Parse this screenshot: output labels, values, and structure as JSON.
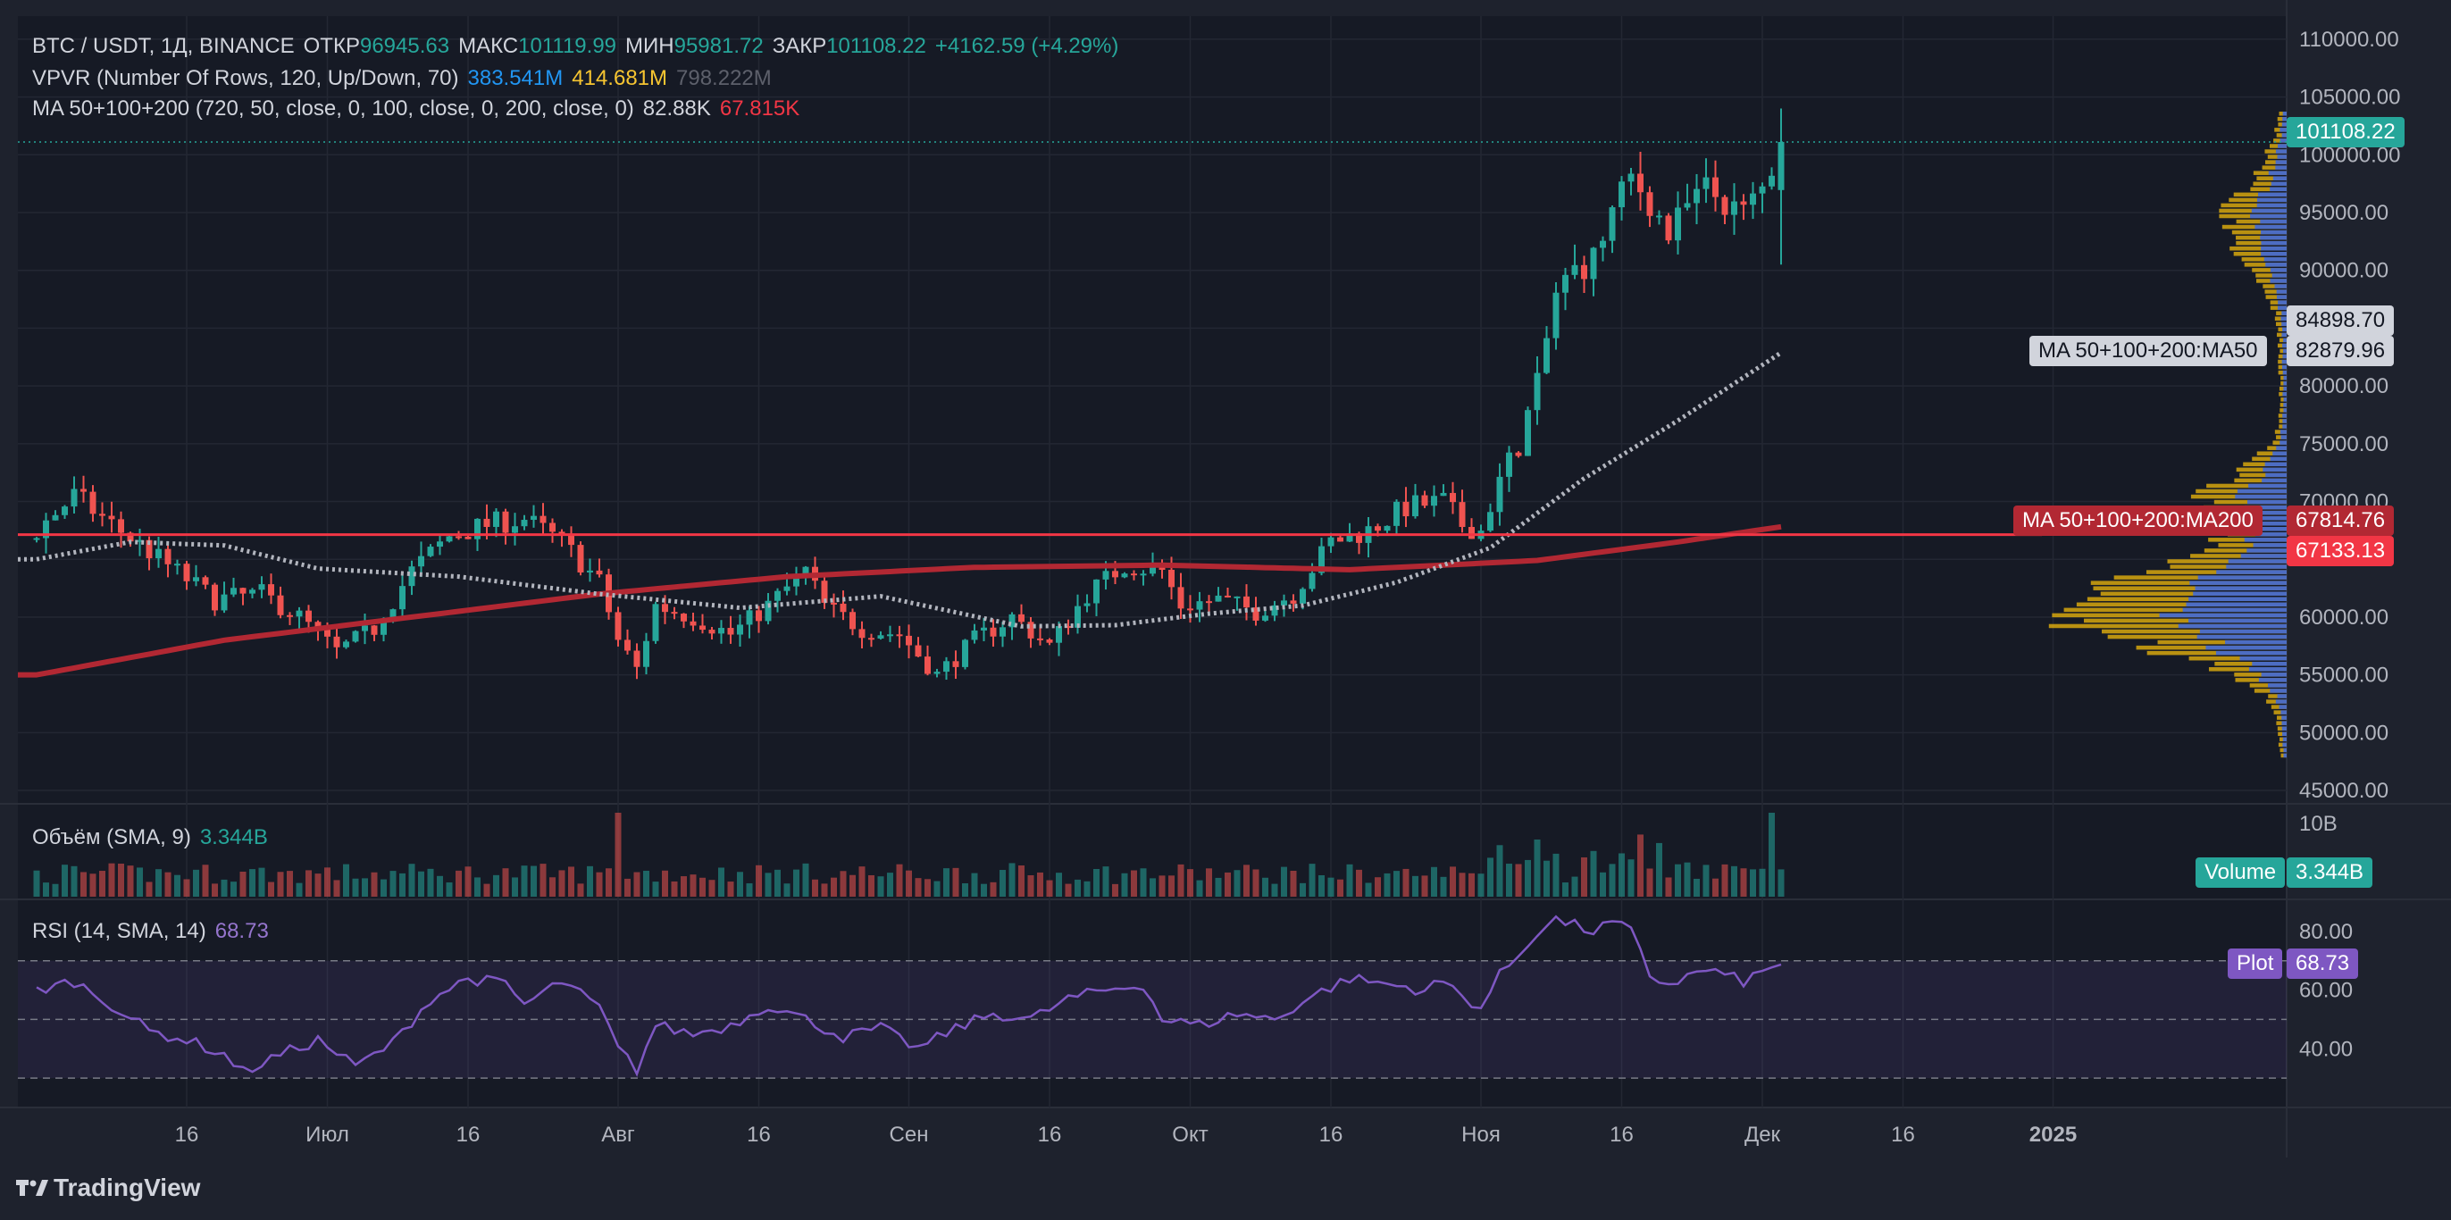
{
  "legend": {
    "symbol": "BTC / USDT, 1Д, BINANCE",
    "open_label": "ОТКР",
    "open": "96945.63",
    "high_label": "МАКС",
    "high": "101119.99",
    "low_label": "МИН",
    "low": "95981.72",
    "close_label": "ЗАКР",
    "close": "101108.22",
    "change": "+4162.59 (+4.29%)",
    "vpvr_label": "VPVR (Number Of Rows, 120, Up/Down, 70)",
    "vpvr_up": "383.541M",
    "vpvr_down": "414.681M",
    "vpvr_total": "798.222M",
    "ma_label": "MA 50+100+200 (720, 50, close, 0, 100, close, 0, 200, close, 0)",
    "ma_v1": "82.88K",
    "ma_v2": "67.815K",
    "volume_label": "Объём (SMA, 9)",
    "volume_value": "3.344B",
    "rsi_label": "RSI (14, SMA, 14)",
    "rsi_value": "68.73"
  },
  "price_labels": {
    "last": "101108.22",
    "ma50_name": "MA 50+100+200:MA50",
    "ma50_value": "82879.96",
    "crosshair": "84898.70",
    "ma200_name": "MA 50+100+200:MA200",
    "ma200_value": "67814.76",
    "hline_value": "67133.13",
    "volume_name": "Volume",
    "volume_value": "3.344B",
    "plot_name": "Plot",
    "plot_value": "68.73"
  },
  "brand": "TradingView",
  "colors": {
    "up": "#26a69a",
    "down": "#ef5350",
    "ma50": "#b2b5be",
    "ma200": "#b22833",
    "hline": "#f23645",
    "rsi": "#7e57c2",
    "vp_up": "#2962ff",
    "vp_down": "#f0b90b"
  },
  "chart_data": [
    {
      "type": "candlestick",
      "title": "BTC / USDT, 1Д, BINANCE",
      "ylim": [
        44000,
        112000
      ],
      "y_ticks": [
        45000,
        50000,
        55000,
        60000,
        65000,
        70000,
        75000,
        80000,
        85000,
        90000,
        95000,
        100000,
        105000,
        110000
      ],
      "y_tick_labels": [
        "45000.00",
        "50000.00",
        "55000.00",
        "60000.00",
        "65000.00",
        "70000.00",
        "75000.00",
        "80000.00",
        "85000.00",
        "90000.00",
        "95000.00",
        "100000.00",
        "105000.00",
        "110000.00"
      ],
      "x_ticks": [
        {
          "label": "16",
          "day": 16
        },
        {
          "label": "Июл",
          "day": 31
        },
        {
          "label": "16",
          "day": 46
        },
        {
          "label": "Авг",
          "day": 62
        },
        {
          "label": "16",
          "day": 77
        },
        {
          "label": "Сен",
          "day": 93
        },
        {
          "label": "16",
          "day": 108
        },
        {
          "label": "Окт",
          "day": 123
        },
        {
          "label": "16",
          "day": 138
        },
        {
          "label": "Ноя",
          "day": 154
        },
        {
          "label": "16",
          "day": 169
        },
        {
          "label": "Дек",
          "day": 184
        },
        {
          "label": "16",
          "day": 199
        },
        {
          "label": "2025",
          "day": 215
        }
      ],
      "close_anchors": [
        [
          0,
          67500
        ],
        [
          4,
          70500
        ],
        [
          8,
          68000
        ],
        [
          14,
          64500
        ],
        [
          19,
          61500
        ],
        [
          24,
          62000
        ],
        [
          28,
          60000
        ],
        [
          32,
          57000
        ],
        [
          36,
          59000
        ],
        [
          40,
          64000
        ],
        [
          44,
          67000
        ],
        [
          48,
          68000
        ],
        [
          52,
          68500
        ],
        [
          56,
          66500
        ],
        [
          60,
          63000
        ],
        [
          62,
          58000
        ],
        [
          64,
          55500
        ],
        [
          66,
          61000
        ],
        [
          70,
          60000
        ],
        [
          74,
          58500
        ],
        [
          78,
          61000
        ],
        [
          82,
          64000
        ],
        [
          84,
          61000
        ],
        [
          88,
          59000
        ],
        [
          92,
          58500
        ],
        [
          96,
          55000
        ],
        [
          100,
          58000
        ],
        [
          104,
          60000
        ],
        [
          108,
          57500
        ],
        [
          112,
          62000
        ],
        [
          116,
          64500
        ],
        [
          120,
          64000
        ],
        [
          122,
          61000
        ],
        [
          126,
          61500
        ],
        [
          130,
          60500
        ],
        [
          134,
          62000
        ],
        [
          138,
          66500
        ],
        [
          142,
          67500
        ],
        [
          146,
          69500
        ],
        [
          150,
          70000
        ],
        [
          152,
          68000
        ],
        [
          154,
          67500
        ],
        [
          156,
          72000
        ],
        [
          158,
          75000
        ],
        [
          160,
          80000
        ],
        [
          162,
          88000
        ],
        [
          164,
          90000
        ],
        [
          166,
          91000
        ],
        [
          168,
          95000
        ],
        [
          170,
          98000
        ],
        [
          172,
          96000
        ],
        [
          174,
          93000
        ],
        [
          176,
          95500
        ],
        [
          178,
          97000
        ],
        [
          180,
          96000
        ],
        [
          182,
          95000
        ],
        [
          184,
          97000
        ],
        [
          186,
          101108
        ]
      ],
      "ma50_anchors": [
        [
          0,
          65000
        ],
        [
          10,
          66500
        ],
        [
          20,
          66200
        ],
        [
          30,
          64200
        ],
        [
          45,
          63500
        ],
        [
          60,
          62000
        ],
        [
          75,
          60800
        ],
        [
          90,
          61800
        ],
        [
          105,
          59200
        ],
        [
          115,
          59300
        ],
        [
          125,
          60300
        ],
        [
          135,
          61000
        ],
        [
          145,
          63000
        ],
        [
          155,
          66000
        ],
        [
          165,
          72000
        ],
        [
          175,
          77000
        ],
        [
          186,
          82880
        ]
      ],
      "ma200_anchors": [
        [
          0,
          55000
        ],
        [
          20,
          58000
        ],
        [
          40,
          60000
        ],
        [
          60,
          62000
        ],
        [
          80,
          63500
        ],
        [
          100,
          64300
        ],
        [
          120,
          64500
        ],
        [
          140,
          64100
        ],
        [
          160,
          64900
        ],
        [
          175,
          66500
        ],
        [
          186,
          67815
        ]
      ],
      "hline": 67133.13
    },
    {
      "type": "bar",
      "title": "Объём (SMA, 9)",
      "value": "3.344B",
      "y_tick_labels": [
        "10B"
      ]
    },
    {
      "type": "line",
      "title": "RSI (14, SMA, 14)",
      "ylim": [
        20,
        90
      ],
      "y_ticks": [
        40,
        60,
        80
      ],
      "y_tick_labels": [
        "40.00",
        "60.00",
        "80.00"
      ],
      "bands": [
        30,
        50,
        70
      ],
      "anchors": [
        [
          0,
          60
        ],
        [
          4,
          63
        ],
        [
          8,
          55
        ],
        [
          12,
          46
        ],
        [
          16,
          43
        ],
        [
          20,
          38
        ],
        [
          22,
          32
        ],
        [
          26,
          38
        ],
        [
          30,
          43
        ],
        [
          34,
          34
        ],
        [
          38,
          42
        ],
        [
          42,
          57
        ],
        [
          46,
          64
        ],
        [
          50,
          62
        ],
        [
          52,
          55
        ],
        [
          56,
          63
        ],
        [
          60,
          54
        ],
        [
          62,
          40
        ],
        [
          64,
          33
        ],
        [
          66,
          48
        ],
        [
          70,
          45
        ],
        [
          74,
          48
        ],
        [
          78,
          55
        ],
        [
          82,
          50
        ],
        [
          86,
          44
        ],
        [
          90,
          47
        ],
        [
          94,
          40
        ],
        [
          98,
          47
        ],
        [
          102,
          52
        ],
        [
          106,
          50
        ],
        [
          110,
          57
        ],
        [
          114,
          60
        ],
        [
          118,
          62
        ],
        [
          120,
          50
        ],
        [
          124,
          48
        ],
        [
          128,
          52
        ],
        [
          132,
          50
        ],
        [
          136,
          58
        ],
        [
          140,
          64
        ],
        [
          144,
          62
        ],
        [
          148,
          60
        ],
        [
          150,
          63
        ],
        [
          152,
          58
        ],
        [
          154,
          54
        ],
        [
          156,
          65
        ],
        [
          158,
          72
        ],
        [
          160,
          80
        ],
        [
          162,
          84
        ],
        [
          164,
          82
        ],
        [
          166,
          80
        ],
        [
          168,
          83
        ],
        [
          170,
          80
        ],
        [
          172,
          65
        ],
        [
          174,
          62
        ],
        [
          178,
          67
        ],
        [
          182,
          63
        ],
        [
          186,
          68.73
        ]
      ]
    }
  ]
}
